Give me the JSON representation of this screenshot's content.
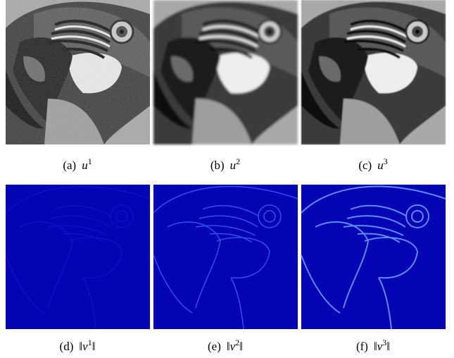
{
  "panels": [
    {
      "label": "(a)",
      "base": "u",
      "sup": "1"
    },
    {
      "label": "(b)",
      "base": "u",
      "sup": "2"
    },
    {
      "label": "(c)",
      "base": "u",
      "sup": "3"
    },
    {
      "label": "(d)",
      "base": "‖v",
      "sup": "1",
      "close": "‖"
    },
    {
      "label": "(e)",
      "base": "‖v",
      "sup": "2",
      "close": "‖"
    },
    {
      "label": "(f)",
      "base": "‖v",
      "sup": "3",
      "close": "‖"
    }
  ]
}
